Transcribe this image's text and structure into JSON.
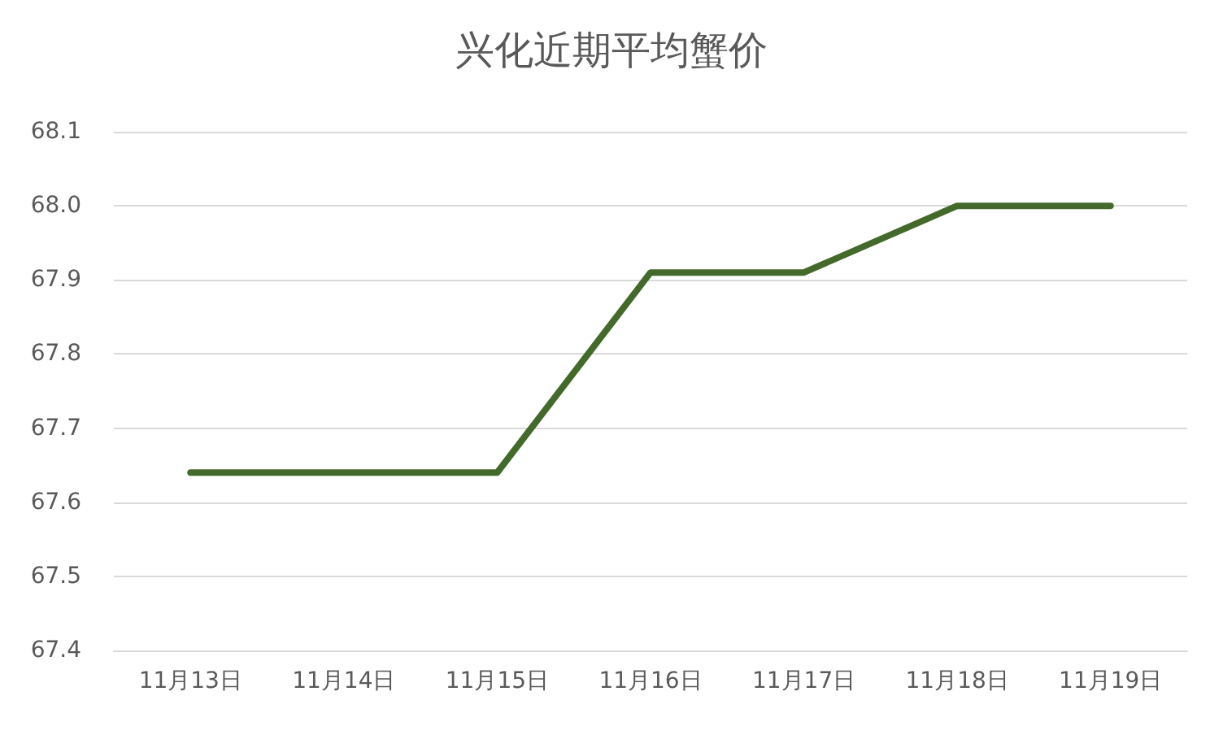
{
  "chart_data": {
    "type": "line",
    "title": "兴化近期平均蟹价",
    "categories": [
      "11月13日",
      "11月14日",
      "11月15日",
      "11月16日",
      "11月17日",
      "11月18日",
      "11月19日"
    ],
    "series": [
      {
        "color": "#436a2b",
        "values": [
          67.64,
          67.64,
          67.64,
          67.91,
          67.91,
          68.0,
          68.0
        ]
      }
    ],
    "ylim": [
      67.4,
      68.1
    ],
    "yticks": [
      67.4,
      67.5,
      67.6,
      67.7,
      67.8,
      67.9,
      {
        "value": 68,
        "label": "68.0"
      },
      68.1
    ],
    "grid": "y",
    "marker": "none",
    "line_style": "solid"
  }
}
